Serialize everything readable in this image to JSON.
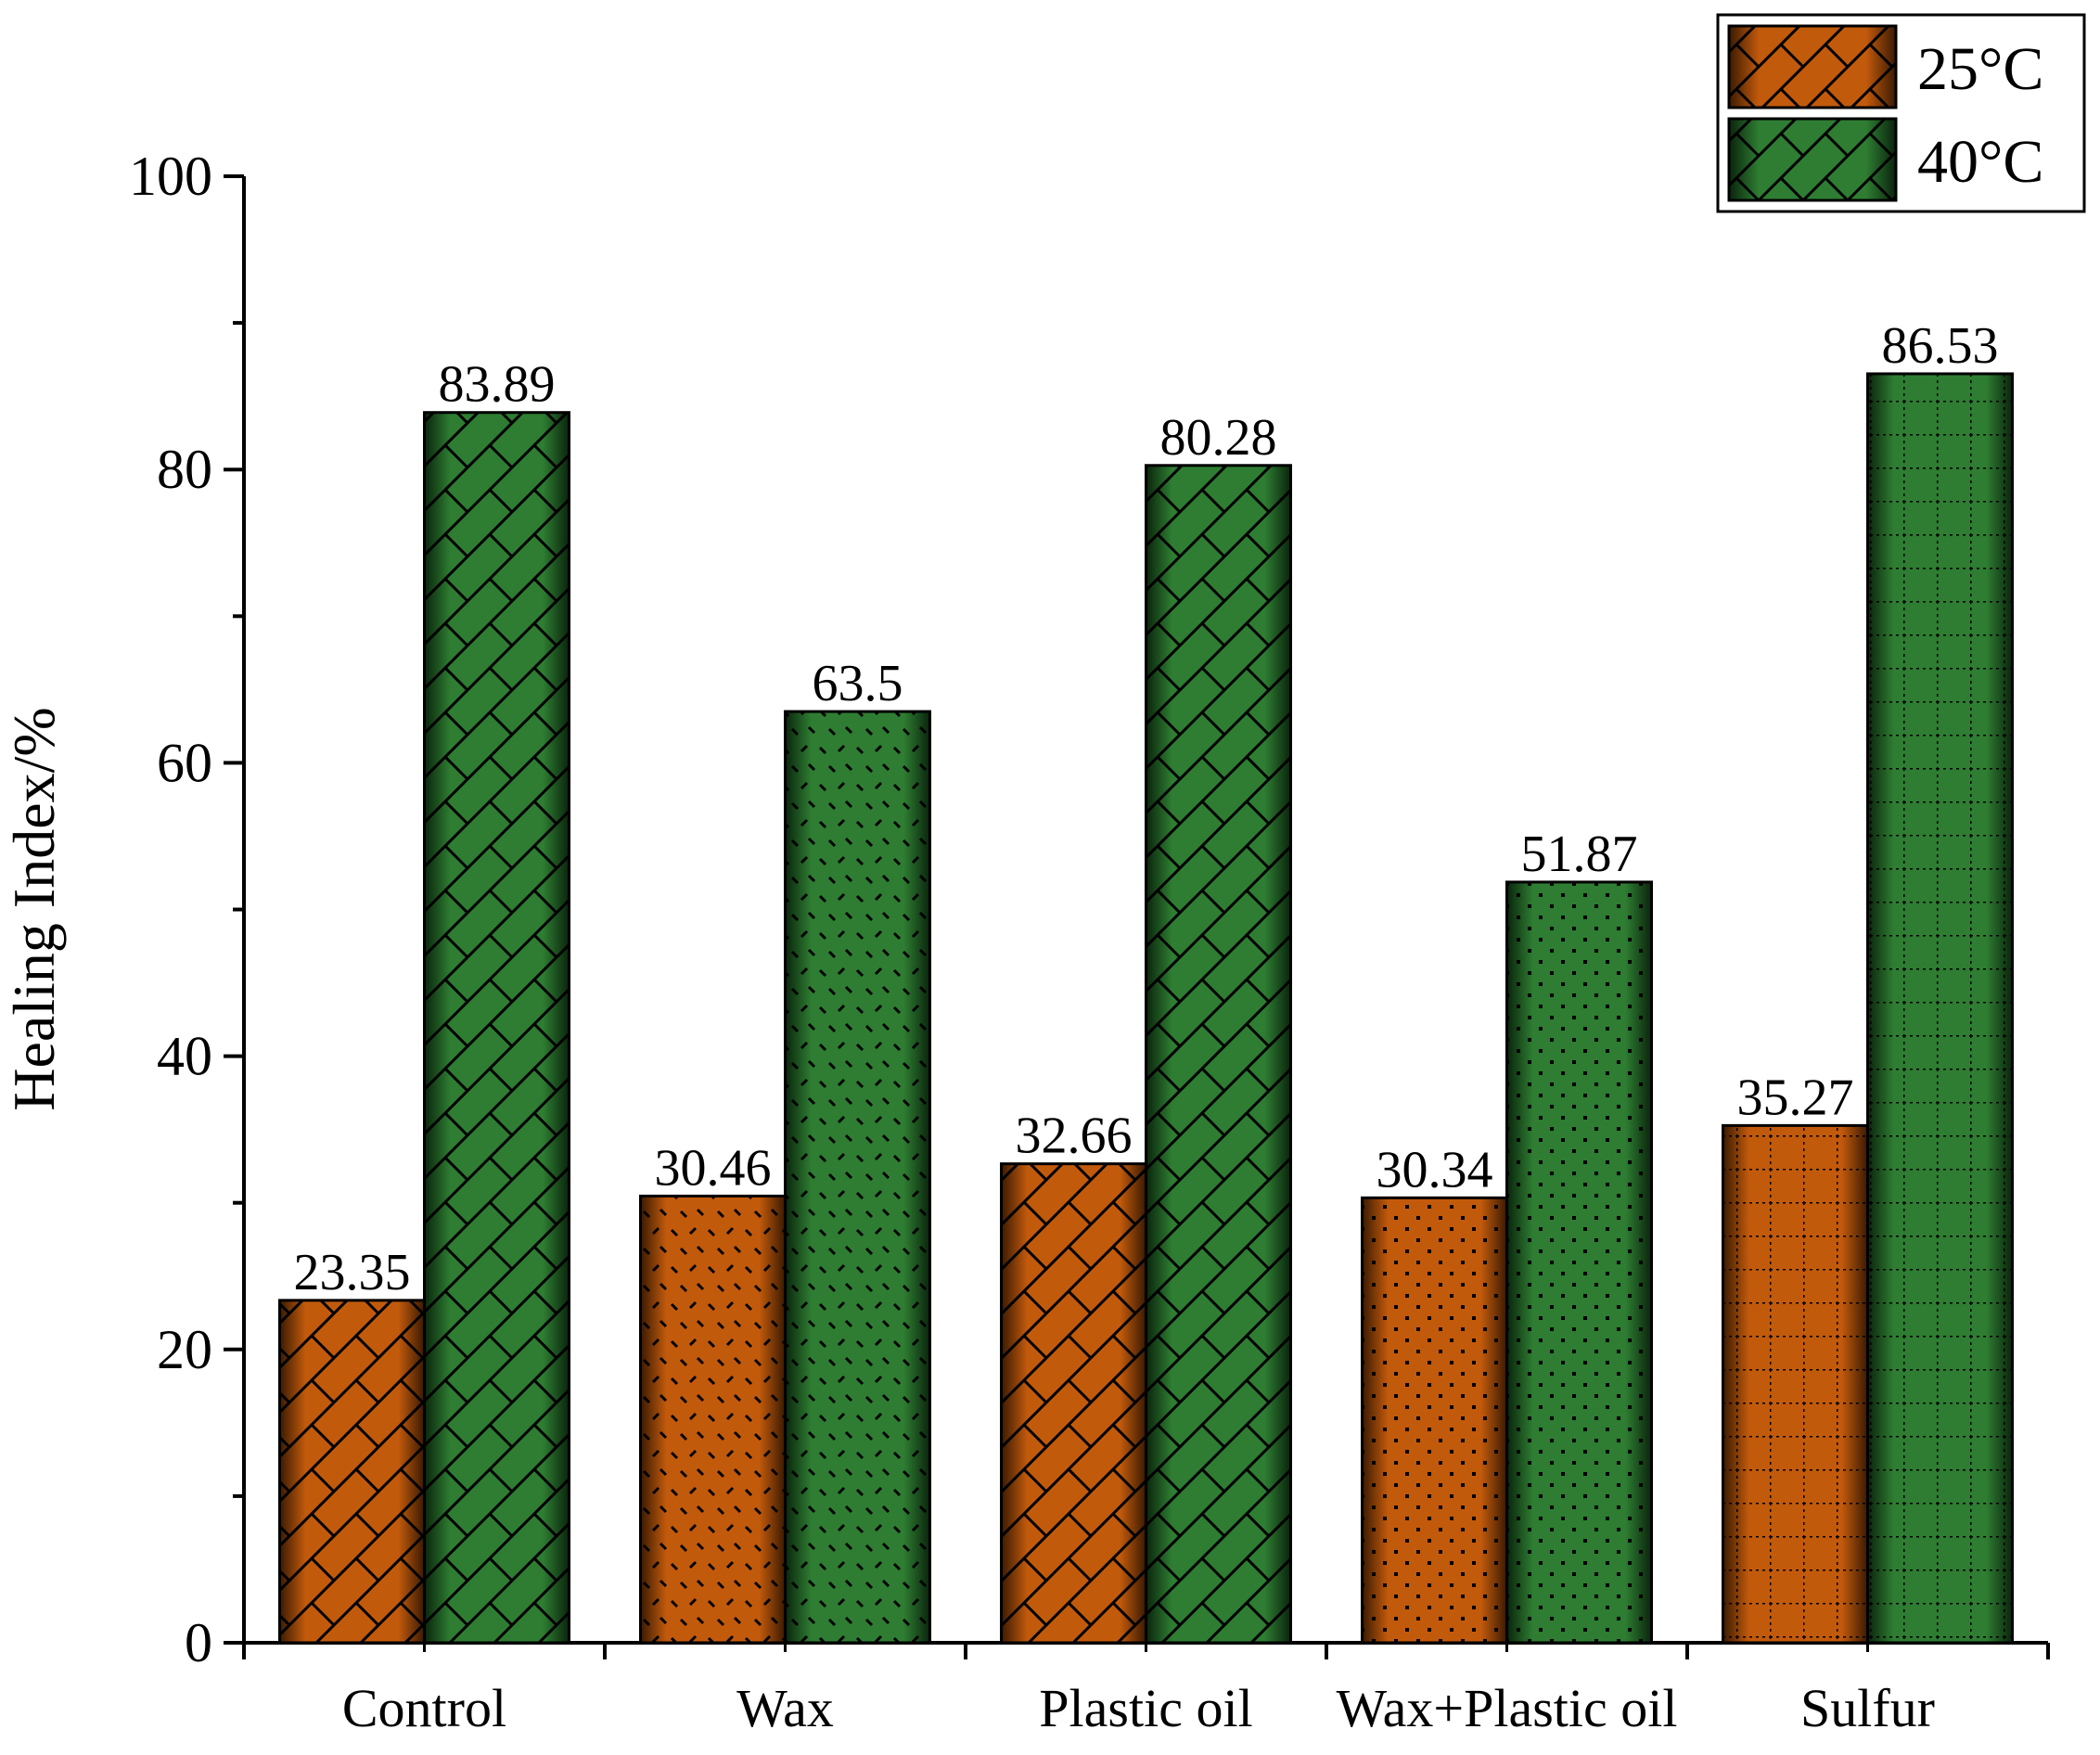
{
  "chart_data": {
    "type": "bar",
    "title": "",
    "xlabel": "",
    "ylabel": "Healing Index/%",
    "ylim": [
      0,
      100
    ],
    "yticks": [
      0,
      20,
      40,
      60,
      80,
      100
    ],
    "grid": false,
    "legend_position": "top-right",
    "categories": [
      "Control",
      "Wax",
      "Plastic oil",
      "Wax+Plastic oil",
      "Sulfur"
    ],
    "series": [
      {
        "name": "25°C",
        "color": "#c25a0c",
        "values": [
          23.35,
          30.46,
          32.66,
          30.34,
          35.27
        ],
        "labels": [
          "23.35",
          "30.46",
          "32.66",
          "30.34",
          "35.27"
        ]
      },
      {
        "name": "40°C",
        "color": "#2e7d32",
        "values": [
          83.89,
          63.5,
          80.28,
          51.87,
          86.53
        ],
        "labels": [
          "83.89",
          "63.5",
          "80.28",
          "51.87",
          "86.53"
        ]
      }
    ]
  }
}
